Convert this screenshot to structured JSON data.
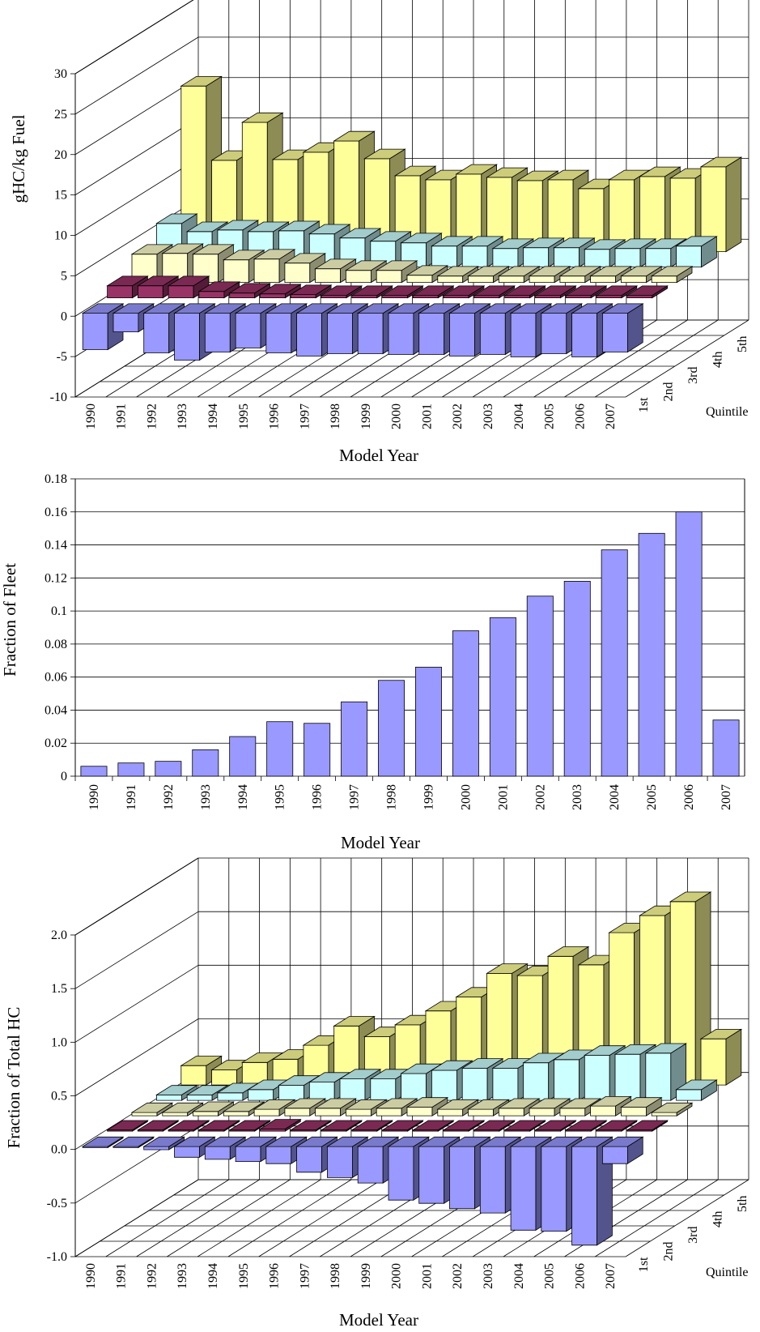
{
  "chart_data": [
    {
      "type": "bar",
      "ylabel": "gHC/kg Fuel",
      "xlabel": "Model Year",
      "zlabel": "Quintile",
      "ylim": [
        -10,
        30
      ],
      "yticks": [
        "-10",
        "-5",
        "0",
        "5",
        "10",
        "15",
        "20",
        "25",
        "30"
      ],
      "categories": [
        "1990",
        "1991",
        "1992",
        "1993",
        "1994",
        "1995",
        "1996",
        "1997",
        "1998",
        "1999",
        "2000",
        "2001",
        "2002",
        "2003",
        "2004",
        "2005",
        "2006",
        "2007"
      ],
      "series": [
        {
          "name": "1st",
          "color": "#9999ff",
          "values": [
            -4.5,
            -2.3,
            -4.9,
            -5.8,
            -4.8,
            -4.3,
            -4.9,
            -5.3,
            -5.0,
            -5.0,
            -5.1,
            -5.1,
            -5.3,
            -5.1,
            -5.4,
            -5.0,
            -5.4,
            -4.8
          ]
        },
        {
          "name": "2nd",
          "color": "#993366",
          "values": [
            1.5,
            1.5,
            1.5,
            0.8,
            0.6,
            0.5,
            0.4,
            0.3,
            0.3,
            0.3,
            0.3,
            0.3,
            0.3,
            0.3,
            0.3,
            0.3,
            0.3,
            0.3
          ]
        },
        {
          "name": "3rd",
          "color": "#ffffcc",
          "values": [
            3.5,
            3.6,
            3.5,
            2.8,
            2.9,
            2.4,
            1.7,
            1.5,
            1.5,
            0.9,
            0.8,
            0.8,
            0.8,
            0.8,
            0.8,
            0.8,
            0.8,
            0.8
          ]
        },
        {
          "name": "4th",
          "color": "#ccffff",
          "values": [
            5.4,
            4.4,
            4.6,
            4.4,
            4.5,
            4.1,
            3.6,
            3.2,
            3.0,
            2.6,
            2.6,
            2.3,
            2.4,
            2.4,
            2.2,
            2.3,
            2.3,
            2.6
          ]
        },
        {
          "name": "5th",
          "color": "#ffff99",
          "values": [
            20.5,
            11.3,
            16.0,
            11.4,
            12.3,
            13.7,
            11.5,
            9.4,
            8.9,
            9.6,
            9.2,
            8.8,
            8.9,
            7.8,
            8.9,
            9.3,
            9.1,
            10.5
          ]
        }
      ]
    },
    {
      "type": "bar",
      "ylabel": "Fraction of Fleet",
      "xlabel": "Model Year",
      "ylim": [
        0,
        0.18
      ],
      "yticks": [
        "0",
        "0.02",
        "0.04",
        "0.06",
        "0.08",
        "0.1",
        "0.12",
        "0.14",
        "0.16",
        "0.18"
      ],
      "categories": [
        "1990",
        "1991",
        "1992",
        "1993",
        "1994",
        "1995",
        "1996",
        "1997",
        "1998",
        "1999",
        "2000",
        "2001",
        "2002",
        "2003",
        "2004",
        "2005",
        "2006",
        "2007"
      ],
      "color": "#9999ff",
      "values": [
        0.006,
        0.008,
        0.009,
        0.016,
        0.024,
        0.033,
        0.032,
        0.045,
        0.058,
        0.066,
        0.088,
        0.096,
        0.109,
        0.118,
        0.137,
        0.147,
        0.16,
        0.034
      ]
    },
    {
      "type": "bar",
      "ylabel": "Fraction of Total HC",
      "xlabel": "Model Year",
      "zlabel": "Quintile",
      "ylim": [
        -1.0,
        2.0
      ],
      "yticks": [
        "-1.0",
        "-0.5",
        "0.0",
        "0.5",
        "1.0",
        "1.5",
        "2.0"
      ],
      "categories": [
        "1990",
        "1991",
        "1992",
        "1993",
        "1994",
        "1995",
        "1996",
        "1997",
        "1998",
        "1999",
        "2000",
        "2001",
        "2002",
        "2003",
        "2004",
        "2005",
        "2006",
        "2007"
      ],
      "series": [
        {
          "name": "1st",
          "color": "#9999ff",
          "values": [
            -0.01,
            -0.01,
            -0.03,
            -0.1,
            -0.12,
            -0.14,
            -0.16,
            -0.24,
            -0.29,
            -0.34,
            -0.5,
            -0.53,
            -0.58,
            -0.62,
            -0.78,
            -0.79,
            -0.92,
            -0.16
          ]
        },
        {
          "name": "2nd",
          "color": "#993366",
          "values": [
            0.01,
            0.01,
            0.01,
            0.01,
            0.01,
            0.02,
            0.01,
            0.01,
            0.01,
            0.01,
            0.01,
            0.01,
            0.01,
            0.01,
            0.01,
            0.01,
            0.01,
            0.01
          ]
        },
        {
          "name": "3rd",
          "color": "#ffffcc",
          "values": [
            0.03,
            0.03,
            0.04,
            0.04,
            0.06,
            0.07,
            0.07,
            0.06,
            0.07,
            0.08,
            0.06,
            0.06,
            0.07,
            0.07,
            0.07,
            0.09,
            0.08,
            0.03
          ]
        },
        {
          "name": "4th",
          "color": "#ccffff",
          "values": [
            0.05,
            0.05,
            0.07,
            0.1,
            0.14,
            0.17,
            0.2,
            0.2,
            0.25,
            0.28,
            0.3,
            0.3,
            0.35,
            0.38,
            0.42,
            0.43,
            0.44,
            0.1
          ]
        },
        {
          "name": "5th",
          "color": "#ffff99",
          "values": [
            0.18,
            0.14,
            0.21,
            0.24,
            0.37,
            0.55,
            0.45,
            0.56,
            0.69,
            0.82,
            1.04,
            1.02,
            1.2,
            1.12,
            1.42,
            1.58,
            1.71,
            0.43
          ]
        }
      ]
    }
  ]
}
